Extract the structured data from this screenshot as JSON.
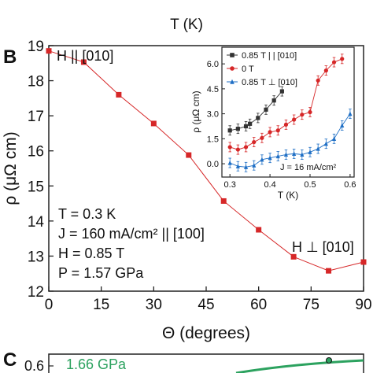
{
  "top_fragment": {
    "xlabel": "T (K)"
  },
  "chart_data": [
    {
      "panel": "B",
      "type": "line",
      "xlabel": "Θ (degrees)",
      "ylabel": "ρ (μΩ cm)",
      "xlim": [
        0,
        90
      ],
      "ylim": [
        12,
        19
      ],
      "xticks": [
        0,
        15,
        30,
        45,
        60,
        75,
        90
      ],
      "yticks": [
        12,
        13,
        14,
        15,
        16,
        17,
        18,
        19
      ],
      "grid": false,
      "color": "#d62728",
      "series": [
        {
          "x": [
            0,
            10,
            20,
            30,
            40,
            50,
            60,
            70,
            80,
            90
          ],
          "values": [
            18.85,
            18.53,
            17.6,
            16.78,
            15.88,
            14.57,
            13.75,
            12.98,
            12.58,
            12.83
          ]
        }
      ],
      "annotations": {
        "top_left": "H || [010]",
        "bottom_right": "H ⊥ [010]",
        "conditions": [
          "T = 0.3 K",
          "J = 160 mA/cm² || [100]",
          "H = 0.85 T",
          "P = 1.57 GPa"
        ]
      }
    },
    {
      "panel": "B-inset",
      "type": "line",
      "xlabel": "T (K)",
      "ylabel": "ρ (μΩ cm)",
      "xlim": [
        0.28,
        0.61
      ],
      "ylim": [
        -0.8,
        7.0
      ],
      "xticks": [
        0.3,
        0.4,
        0.5,
        0.6
      ],
      "yticks": [
        0.0,
        1.5,
        3.0,
        4.5,
        6.0
      ],
      "legend_position": "top-left",
      "annotation": "J = 16 mA/cm²",
      "series": [
        {
          "name": "0.85 T | | [010]",
          "color": "#333333",
          "marker": "square",
          "x": [
            0.3,
            0.32,
            0.34,
            0.35,
            0.37,
            0.39,
            0.41,
            0.43
          ],
          "values": [
            2.0,
            2.1,
            2.25,
            2.4,
            2.75,
            3.25,
            3.8,
            4.35
          ]
        },
        {
          "name": "0 T",
          "color": "#d62728",
          "marker": "circle",
          "x": [
            0.3,
            0.32,
            0.34,
            0.36,
            0.38,
            0.4,
            0.42,
            0.44,
            0.46,
            0.48,
            0.5,
            0.52,
            0.54,
            0.56,
            0.58
          ],
          "values": [
            1.0,
            0.85,
            1.0,
            1.3,
            1.55,
            1.9,
            2.0,
            2.35,
            2.65,
            2.95,
            3.1,
            5.0,
            5.6,
            6.1,
            6.3
          ]
        },
        {
          "name": "0.85 T ⊥ [010]",
          "color": "#1f6fc5",
          "marker": "triangle",
          "x": [
            0.3,
            0.32,
            0.34,
            0.36,
            0.38,
            0.4,
            0.42,
            0.44,
            0.46,
            0.48,
            0.5,
            0.52,
            0.54,
            0.56,
            0.58,
            0.6
          ],
          "values": [
            0.05,
            -0.15,
            -0.2,
            -0.1,
            0.25,
            0.35,
            0.45,
            0.55,
            0.6,
            0.55,
            0.7,
            0.9,
            1.2,
            1.5,
            2.3,
            3.0
          ]
        }
      ]
    },
    {
      "panel": "C",
      "type": "line",
      "partial": true,
      "yticks_visible": [
        0.6
      ],
      "series_label": "1.66 GPa",
      "color": "#2ca25f"
    }
  ]
}
